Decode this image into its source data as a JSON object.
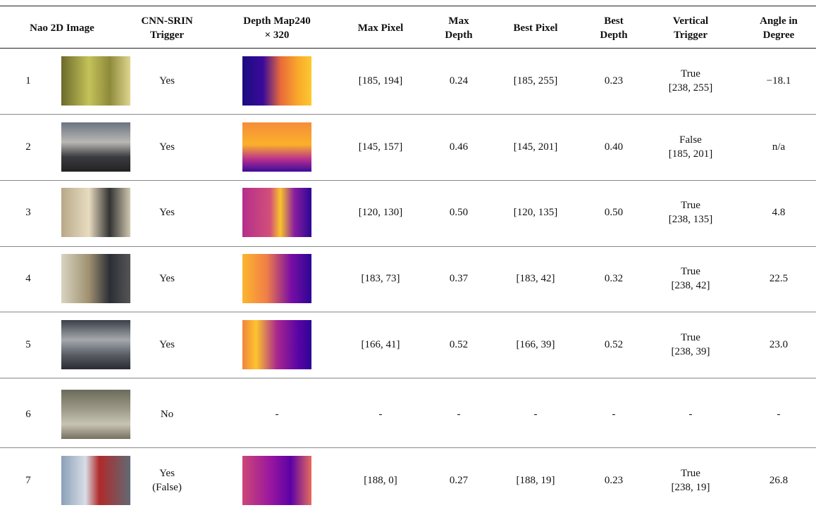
{
  "table": {
    "headers": [
      [
        "Nao 2D Image"
      ],
      [
        "CNN-SRIN",
        "Trigger"
      ],
      [
        "Depth Map240",
        "× 320"
      ],
      [
        "Max Pixel"
      ],
      [
        "Max",
        "Depth"
      ],
      [
        "Best Pixel"
      ],
      [
        "Best",
        "Depth"
      ],
      [
        "Vertical",
        "Trigger"
      ],
      [
        "Angle in",
        "Degree"
      ]
    ],
    "rows": [
      {
        "id": "1",
        "trigger": [
          "Yes"
        ],
        "max_pixel": "[185, 194]",
        "max_depth": "0.24",
        "best_pixel": "[185, 255]",
        "best_depth": "0.23",
        "vertical": [
          "True",
          "[238, 255]"
        ],
        "angle": "−18.1"
      },
      {
        "id": "2",
        "trigger": [
          "Yes"
        ],
        "max_pixel": "[145, 157]",
        "max_depth": "0.46",
        "best_pixel": "[145, 201]",
        "best_depth": "0.40",
        "vertical": [
          "False",
          "[185, 201]"
        ],
        "angle": "n/a"
      },
      {
        "id": "3",
        "trigger": [
          "Yes"
        ],
        "max_pixel": "[120, 130]",
        "max_depth": "0.50",
        "best_pixel": "[120, 135]",
        "best_depth": "0.50",
        "vertical": [
          "True",
          "[238, 135]"
        ],
        "angle": "4.8"
      },
      {
        "id": "4",
        "trigger": [
          "Yes"
        ],
        "max_pixel": "[183, 73]",
        "max_depth": "0.37",
        "best_pixel": "[183, 42]",
        "best_depth": "0.32",
        "vertical": [
          "True",
          "[238, 42]"
        ],
        "angle": "22.5"
      },
      {
        "id": "5",
        "trigger": [
          "Yes"
        ],
        "max_pixel": "[166, 41]",
        "max_depth": "0.52",
        "best_pixel": "[166, 39]",
        "best_depth": "0.52",
        "vertical": [
          "True",
          "[238, 39]"
        ],
        "angle": "23.0"
      },
      {
        "id": "6",
        "trigger": [
          "No"
        ],
        "max_pixel": "-",
        "max_depth": "-",
        "best_pixel": "-",
        "best_depth": "-",
        "vertical": [
          "-"
        ],
        "angle": "-"
      },
      {
        "id": "7",
        "trigger": [
          "Yes",
          "(False)"
        ],
        "max_pixel": "[188, 0]",
        "max_depth": "0.27",
        "best_pixel": "[188, 19]",
        "best_depth": "0.23",
        "vertical": [
          "True",
          "[238, 19]"
        ],
        "angle": "26.8"
      }
    ]
  }
}
